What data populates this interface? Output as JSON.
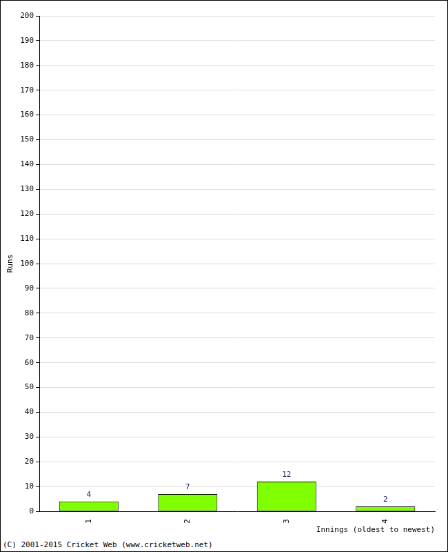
{
  "chart_data": {
    "type": "bar",
    "categories": [
      "1",
      "2",
      "3",
      "4"
    ],
    "values": [
      4,
      7,
      12,
      2
    ],
    "color": "#80ff00",
    "y_label": "Runs",
    "x_label": "Innings (oldest to newest)",
    "annotations": [
      "(C) 2001-2015 Cricket Web (www.cricketweb.net)"
    ],
    "ylim": [
      0,
      200
    ],
    "yticks": [
      0,
      10,
      20,
      30,
      40,
      50,
      60,
      70,
      80,
      90,
      100,
      110,
      120,
      130,
      140,
      150,
      160,
      170,
      180,
      190,
      200
    ],
    "grid": true,
    "data_labels": true
  }
}
